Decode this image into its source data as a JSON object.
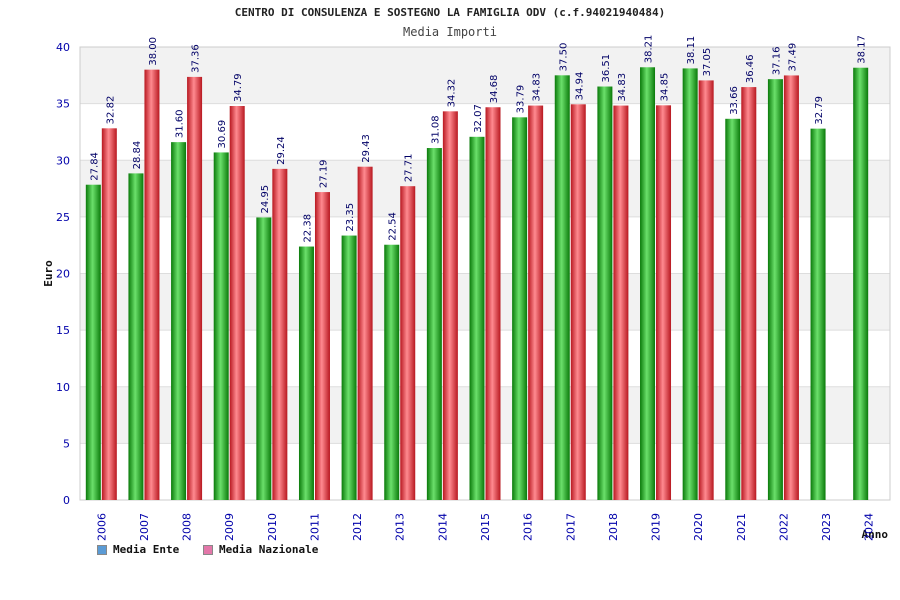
{
  "chart_data": {
    "type": "bar",
    "title": "CENTRO DI CONSULENZA E SOSTEGNO LA FAMIGLIA ODV (c.f.94021940484)",
    "subtitle": "Media Importi",
    "xlabel": "Anno",
    "ylabel": "Euro",
    "ylim": [
      0,
      40
    ],
    "yticks": [
      0,
      5,
      10,
      15,
      20,
      25,
      30,
      35,
      40
    ],
    "grid": true,
    "legend_position": "bottom-left",
    "categories": [
      "2006",
      "2007",
      "2008",
      "2009",
      "2010",
      "2011",
      "2012",
      "2013",
      "2014",
      "2015",
      "2016",
      "2017",
      "2018",
      "2019",
      "2020",
      "2021",
      "2022",
      "2023",
      "2024"
    ],
    "series": [
      {
        "name": "Media Ente",
        "color": "#1aab1a",
        "legend_color": "#5b9bd5",
        "values": [
          27.84,
          28.84,
          31.6,
          30.69,
          24.95,
          22.38,
          23.35,
          22.54,
          31.08,
          32.07,
          33.79,
          37.5,
          36.51,
          38.21,
          38.11,
          33.66,
          37.16,
          32.79,
          38.17
        ]
      },
      {
        "name": "Media Nazionale",
        "color": "#e8303a",
        "legend_color": "#e377a9",
        "values": [
          32.82,
          38.0,
          37.36,
          34.79,
          29.24,
          27.19,
          29.43,
          27.71,
          34.32,
          34.68,
          34.83,
          34.94,
          34.83,
          34.85,
          37.05,
          36.46,
          37.49,
          null,
          null
        ]
      }
    ]
  }
}
